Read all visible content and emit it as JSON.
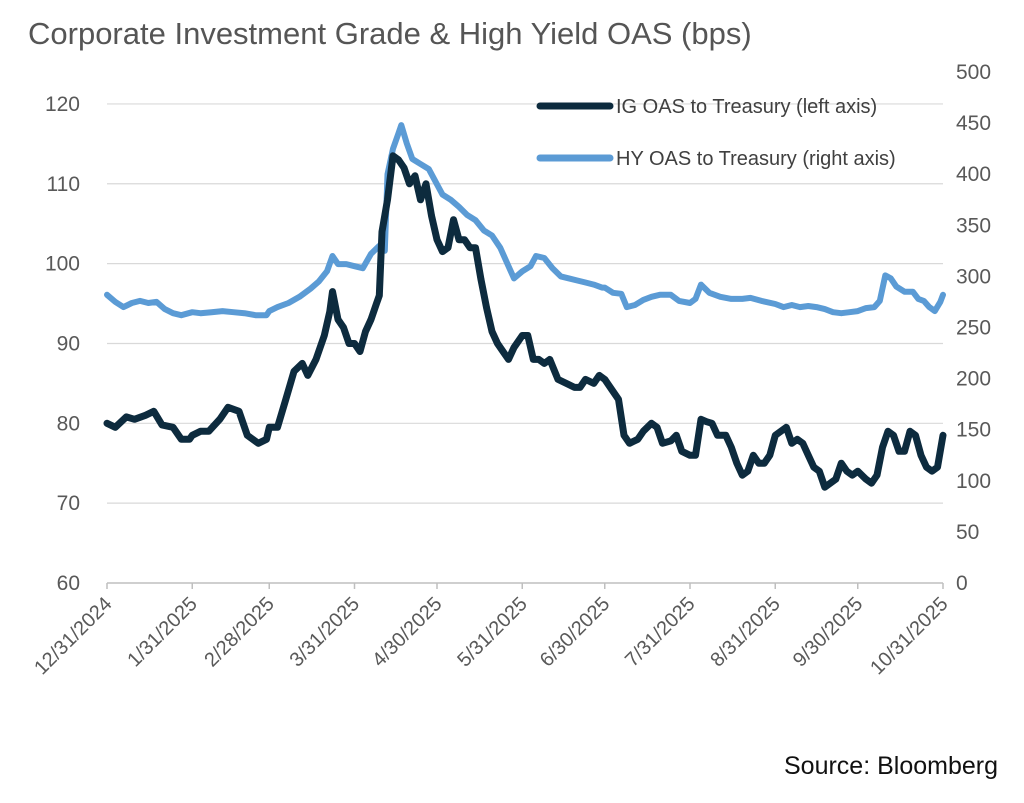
{
  "title": "Corporate Investment Grade & High Yield OAS (bps)",
  "source": "Source: Bloomberg",
  "colors": {
    "ig": "#0d2b3e",
    "hy": "#5b9bd5",
    "grid": "#d9d9d9",
    "axis": "#bfbfbf"
  },
  "chart_data": {
    "type": "line",
    "x_tick_labels": [
      "12/31/2024",
      "1/31/2025",
      "2/28/2025",
      "3/31/2025",
      "4/30/2025",
      "5/31/2025",
      "6/30/2025",
      "7/31/2025",
      "8/31/2025",
      "9/30/2025",
      "10/31/2025"
    ],
    "x_tick_dates": [
      "2024-12-31",
      "2025-01-31",
      "2025-02-28",
      "2025-03-31",
      "2025-04-30",
      "2025-05-31",
      "2025-06-30",
      "2025-07-31",
      "2025-08-31",
      "2025-09-30",
      "2025-10-31"
    ],
    "xlim": [
      "2024-12-31",
      "2025-10-31"
    ],
    "y_left": {
      "ticks": [
        60,
        70,
        80,
        90,
        100,
        110,
        120
      ],
      "range": [
        60,
        124
      ]
    },
    "y_right": {
      "ticks": [
        0,
        50,
        100,
        150,
        200,
        250,
        300,
        350,
        400,
        450,
        500
      ],
      "range": [
        0,
        500
      ]
    },
    "grid": true,
    "legend_position": "top-right",
    "series": [
      {
        "name": "IG OAS to Treasury (left axis)",
        "axis": "left",
        "points": [
          [
            "2024-12-31",
            80
          ],
          [
            "2025-01-03",
            79.5
          ],
          [
            "2025-01-07",
            80.8
          ],
          [
            "2025-01-10",
            80.5
          ],
          [
            "2025-01-14",
            81
          ],
          [
            "2025-01-17",
            81.5
          ],
          [
            "2025-01-20",
            79.8
          ],
          [
            "2025-01-24",
            79.5
          ],
          [
            "2025-01-27",
            78
          ],
          [
            "2025-01-30",
            78
          ],
          [
            "2025-01-31",
            78.5
          ],
          [
            "2025-02-03",
            79
          ],
          [
            "2025-02-06",
            79
          ],
          [
            "2025-02-10",
            80.5
          ],
          [
            "2025-02-13",
            82
          ],
          [
            "2025-02-17",
            81.5
          ],
          [
            "2025-02-20",
            78.5
          ],
          [
            "2025-02-24",
            77.5
          ],
          [
            "2025-02-27",
            78
          ],
          [
            "2025-02-28",
            79.5
          ],
          [
            "2025-03-03",
            79.5
          ],
          [
            "2025-03-06",
            83
          ],
          [
            "2025-03-09",
            86.5
          ],
          [
            "2025-03-12",
            87.5
          ],
          [
            "2025-03-14",
            86
          ],
          [
            "2025-03-17",
            88
          ],
          [
            "2025-03-20",
            91
          ],
          [
            "2025-03-22",
            94
          ],
          [
            "2025-03-23",
            96.5
          ],
          [
            "2025-03-25",
            93
          ],
          [
            "2025-03-27",
            92
          ],
          [
            "2025-03-29",
            90
          ],
          [
            "2025-03-31",
            90
          ],
          [
            "2025-04-02",
            89
          ],
          [
            "2025-04-04",
            91.5
          ],
          [
            "2025-04-06",
            93
          ],
          [
            "2025-04-08",
            95
          ],
          [
            "2025-04-09",
            96
          ],
          [
            "2025-04-10",
            104
          ],
          [
            "2025-04-12",
            108
          ],
          [
            "2025-04-14",
            113.5
          ],
          [
            "2025-04-16",
            113
          ],
          [
            "2025-04-18",
            112
          ],
          [
            "2025-04-20",
            110
          ],
          [
            "2025-04-22",
            111
          ],
          [
            "2025-04-24",
            108
          ],
          [
            "2025-04-26",
            110
          ],
          [
            "2025-04-28",
            106
          ],
          [
            "2025-04-30",
            103
          ],
          [
            "2025-05-02",
            101.5
          ],
          [
            "2025-05-04",
            102
          ],
          [
            "2025-05-06",
            105.5
          ],
          [
            "2025-05-08",
            103
          ],
          [
            "2025-05-10",
            103
          ],
          [
            "2025-05-12",
            102
          ],
          [
            "2025-05-14",
            102
          ],
          [
            "2025-05-16",
            98
          ],
          [
            "2025-05-18",
            94.5
          ],
          [
            "2025-05-20",
            91.5
          ],
          [
            "2025-05-22",
            90
          ],
          [
            "2025-05-24",
            89
          ],
          [
            "2025-05-26",
            88
          ],
          [
            "2025-05-28",
            89.5
          ],
          [
            "2025-05-31",
            91
          ],
          [
            "2025-06-02",
            91
          ],
          [
            "2025-06-04",
            88
          ],
          [
            "2025-06-06",
            88
          ],
          [
            "2025-06-08",
            87.5
          ],
          [
            "2025-06-10",
            88
          ],
          [
            "2025-06-13",
            85.5
          ],
          [
            "2025-06-16",
            85
          ],
          [
            "2025-06-19",
            84.5
          ],
          [
            "2025-06-21",
            84.5
          ],
          [
            "2025-06-23",
            85.5
          ],
          [
            "2025-06-26",
            85
          ],
          [
            "2025-06-28",
            86
          ],
          [
            "2025-06-30",
            85.5
          ],
          [
            "2025-07-03",
            84
          ],
          [
            "2025-07-05",
            83
          ],
          [
            "2025-07-07",
            78.5
          ],
          [
            "2025-07-09",
            77.5
          ],
          [
            "2025-07-12",
            78
          ],
          [
            "2025-07-14",
            79
          ],
          [
            "2025-07-17",
            80
          ],
          [
            "2025-07-19",
            79.5
          ],
          [
            "2025-07-21",
            77.5
          ],
          [
            "2025-07-24",
            77.8
          ],
          [
            "2025-07-26",
            78.5
          ],
          [
            "2025-07-28",
            76.5
          ],
          [
            "2025-07-31",
            76
          ],
          [
            "2025-08-02",
            76
          ],
          [
            "2025-08-04",
            80.5
          ],
          [
            "2025-08-06",
            80.2
          ],
          [
            "2025-08-08",
            80
          ],
          [
            "2025-08-10",
            78.5
          ],
          [
            "2025-08-13",
            78.5
          ],
          [
            "2025-08-15",
            77
          ],
          [
            "2025-08-17",
            75
          ],
          [
            "2025-08-19",
            73.5
          ],
          [
            "2025-08-21",
            74
          ],
          [
            "2025-08-23",
            76
          ],
          [
            "2025-08-25",
            75
          ],
          [
            "2025-08-27",
            75
          ],
          [
            "2025-08-29",
            76
          ],
          [
            "2025-08-31",
            78.5
          ],
          [
            "2025-09-02",
            79
          ],
          [
            "2025-09-04",
            79.5
          ],
          [
            "2025-09-06",
            77.5
          ],
          [
            "2025-09-08",
            78
          ],
          [
            "2025-09-10",
            77.5
          ],
          [
            "2025-09-12",
            76
          ],
          [
            "2025-09-14",
            74.5
          ],
          [
            "2025-09-16",
            74
          ],
          [
            "2025-09-18",
            72
          ],
          [
            "2025-09-20",
            72.5
          ],
          [
            "2025-09-22",
            73
          ],
          [
            "2025-09-24",
            75
          ],
          [
            "2025-09-26",
            74
          ],
          [
            "2025-09-28",
            73.5
          ],
          [
            "2025-09-30",
            74
          ],
          [
            "2025-10-03",
            73
          ],
          [
            "2025-10-05",
            72.5
          ],
          [
            "2025-10-07",
            73.5
          ],
          [
            "2025-10-09",
            77
          ],
          [
            "2025-10-11",
            79
          ],
          [
            "2025-10-13",
            78.5
          ],
          [
            "2025-10-15",
            76.5
          ],
          [
            "2025-10-17",
            76.5
          ],
          [
            "2025-10-19",
            79
          ],
          [
            "2025-10-21",
            78.5
          ],
          [
            "2025-10-23",
            76
          ],
          [
            "2025-10-25",
            74.5
          ],
          [
            "2025-10-27",
            74
          ],
          [
            "2025-10-29",
            74.5
          ],
          [
            "2025-10-31",
            78.5
          ]
        ]
      },
      {
        "name": "HY OAS to Treasury (right axis)",
        "axis": "right",
        "points": [
          [
            "2024-12-31",
            282
          ],
          [
            "2025-01-03",
            275
          ],
          [
            "2025-01-06",
            270
          ],
          [
            "2025-01-09",
            274
          ],
          [
            "2025-01-12",
            276
          ],
          [
            "2025-01-15",
            274
          ],
          [
            "2025-01-18",
            275
          ],
          [
            "2025-01-21",
            268
          ],
          [
            "2025-01-24",
            264
          ],
          [
            "2025-01-27",
            262
          ],
          [
            "2025-01-31",
            265
          ],
          [
            "2025-02-03",
            264
          ],
          [
            "2025-02-07",
            265
          ],
          [
            "2025-02-11",
            266
          ],
          [
            "2025-02-15",
            265
          ],
          [
            "2025-02-19",
            264
          ],
          [
            "2025-02-23",
            262
          ],
          [
            "2025-02-27",
            262
          ],
          [
            "2025-02-28",
            266
          ],
          [
            "2025-03-03",
            270
          ],
          [
            "2025-03-07",
            274
          ],
          [
            "2025-03-11",
            280
          ],
          [
            "2025-03-15",
            288
          ],
          [
            "2025-03-18",
            295
          ],
          [
            "2025-03-21",
            305
          ],
          [
            "2025-03-23",
            320
          ],
          [
            "2025-03-25",
            312
          ],
          [
            "2025-03-28",
            312
          ],
          [
            "2025-03-31",
            310
          ],
          [
            "2025-04-03",
            308
          ],
          [
            "2025-04-06",
            322
          ],
          [
            "2025-04-09",
            330
          ],
          [
            "2025-04-11",
            325
          ],
          [
            "2025-04-12",
            400
          ],
          [
            "2025-04-14",
            425
          ],
          [
            "2025-04-16",
            440
          ],
          [
            "2025-04-17",
            448
          ],
          [
            "2025-04-19",
            430
          ],
          [
            "2025-04-21",
            415
          ],
          [
            "2025-04-24",
            410
          ],
          [
            "2025-04-27",
            405
          ],
          [
            "2025-04-29",
            395
          ],
          [
            "2025-04-30",
            390
          ],
          [
            "2025-05-02",
            380
          ],
          [
            "2025-05-05",
            375
          ],
          [
            "2025-05-08",
            368
          ],
          [
            "2025-05-11",
            360
          ],
          [
            "2025-05-14",
            355
          ],
          [
            "2025-05-17",
            345
          ],
          [
            "2025-05-20",
            340
          ],
          [
            "2025-05-23",
            328
          ],
          [
            "2025-05-26",
            310
          ],
          [
            "2025-05-28",
            298
          ],
          [
            "2025-05-31",
            305
          ],
          [
            "2025-06-03",
            310
          ],
          [
            "2025-06-05",
            320
          ],
          [
            "2025-06-08",
            318
          ],
          [
            "2025-06-11",
            308
          ],
          [
            "2025-06-14",
            300
          ],
          [
            "2025-06-17",
            298
          ],
          [
            "2025-06-20",
            296
          ],
          [
            "2025-06-23",
            294
          ],
          [
            "2025-06-26",
            292
          ],
          [
            "2025-06-29",
            289
          ],
          [
            "2025-06-30",
            289
          ],
          [
            "2025-07-03",
            284
          ],
          [
            "2025-07-06",
            283
          ],
          [
            "2025-07-08",
            270
          ],
          [
            "2025-07-11",
            272
          ],
          [
            "2025-07-14",
            277
          ],
          [
            "2025-07-17",
            280
          ],
          [
            "2025-07-20",
            282
          ],
          [
            "2025-07-24",
            282
          ],
          [
            "2025-07-27",
            276
          ],
          [
            "2025-07-31",
            274
          ],
          [
            "2025-08-02",
            278
          ],
          [
            "2025-08-04",
            292
          ],
          [
            "2025-08-07",
            284
          ],
          [
            "2025-08-11",
            280
          ],
          [
            "2025-08-15",
            278
          ],
          [
            "2025-08-19",
            278
          ],
          [
            "2025-08-22",
            279
          ],
          [
            "2025-08-26",
            276
          ],
          [
            "2025-08-31",
            273
          ],
          [
            "2025-09-03",
            270
          ],
          [
            "2025-09-06",
            272
          ],
          [
            "2025-09-09",
            270
          ],
          [
            "2025-09-12",
            271
          ],
          [
            "2025-09-15",
            270
          ],
          [
            "2025-09-18",
            268
          ],
          [
            "2025-09-21",
            265
          ],
          [
            "2025-09-24",
            264
          ],
          [
            "2025-09-27",
            265
          ],
          [
            "2025-09-30",
            266
          ],
          [
            "2025-10-03",
            269
          ],
          [
            "2025-10-06",
            270
          ],
          [
            "2025-10-08",
            276
          ],
          [
            "2025-10-10",
            301
          ],
          [
            "2025-10-12",
            298
          ],
          [
            "2025-10-14",
            290
          ],
          [
            "2025-10-17",
            285
          ],
          [
            "2025-10-20",
            285
          ],
          [
            "2025-10-22",
            278
          ],
          [
            "2025-10-24",
            276
          ],
          [
            "2025-10-26",
            270
          ],
          [
            "2025-10-28",
            266
          ],
          [
            "2025-10-30",
            275
          ],
          [
            "2025-10-31",
            282
          ]
        ]
      }
    ]
  }
}
